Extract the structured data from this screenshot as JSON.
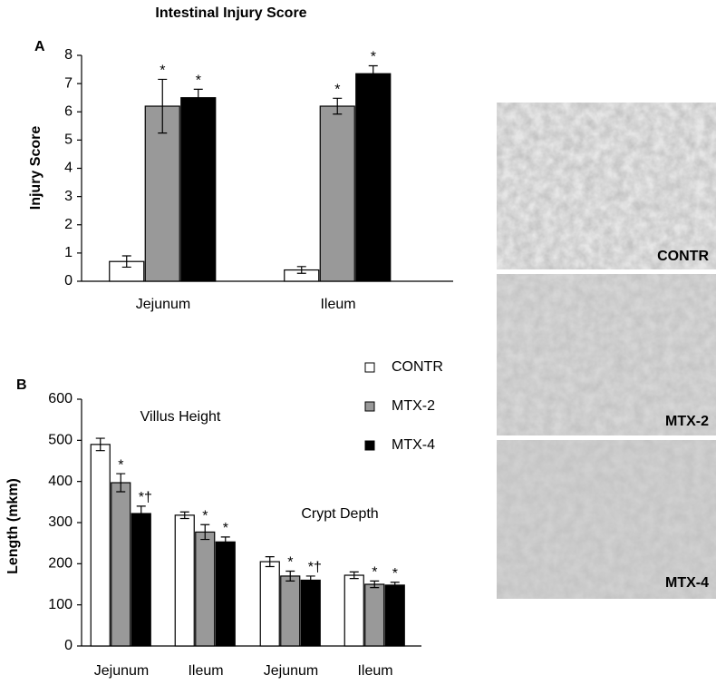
{
  "chart_data": [
    {
      "type": "bar",
      "panel": "A",
      "title": "Intestinal Injury Score",
      "ylabel": "Injury Score",
      "categories": [
        "Jejunum",
        "Ileum"
      ],
      "series": [
        {
          "name": "CONTR",
          "color": "#ffffff",
          "values": [
            0.7,
            0.4
          ],
          "errors": [
            0.2,
            0.12
          ],
          "markers": [
            null,
            null
          ]
        },
        {
          "name": "MTX-2",
          "color": "#999999",
          "values": [
            6.2,
            6.2
          ],
          "errors": [
            0.95,
            0.28
          ],
          "markers": [
            "*",
            "*"
          ]
        },
        {
          "name": "MTX-4",
          "color": "#000000",
          "values": [
            6.5,
            7.35
          ],
          "errors": [
            0.3,
            0.28
          ],
          "markers": [
            "*",
            "*"
          ]
        }
      ],
      "ylim": [
        0,
        8
      ],
      "yticks": [
        0,
        1,
        2,
        3,
        4,
        5,
        6,
        7,
        8
      ],
      "grid": false
    },
    {
      "type": "bar",
      "panel": "B",
      "ylabel": "Length (mkm)",
      "categories": [
        "Jejunum",
        "Ileum",
        "Jejunum",
        "Ileum"
      ],
      "annotations": [
        "Villus Height",
        "Crypt Depth"
      ],
      "series": [
        {
          "name": "CONTR",
          "color": "#ffffff",
          "values": [
            490,
            318,
            205,
            172
          ],
          "errors": [
            15,
            8,
            12,
            8
          ],
          "markers": [
            null,
            null,
            null,
            null
          ]
        },
        {
          "name": "MTX-2",
          "color": "#999999",
          "values": [
            397,
            277,
            170,
            150
          ],
          "errors": [
            22,
            18,
            12,
            8
          ],
          "markers": [
            "*",
            "*",
            "*",
            "*"
          ]
        },
        {
          "name": "MTX-4",
          "color": "#000000",
          "values": [
            322,
            253,
            160,
            148
          ],
          "errors": [
            18,
            12,
            10,
            7
          ],
          "markers": [
            "*†",
            "*",
            "*†",
            "*"
          ]
        }
      ],
      "ylim": [
        0,
        600
      ],
      "yticks": [
        0,
        100,
        200,
        300,
        400,
        500,
        600
      ],
      "grid": false,
      "legend": "top-right"
    }
  ],
  "images": [
    {
      "label": "CONTR"
    },
    {
      "label": "MTX-2"
    },
    {
      "label": "MTX-4"
    }
  ]
}
